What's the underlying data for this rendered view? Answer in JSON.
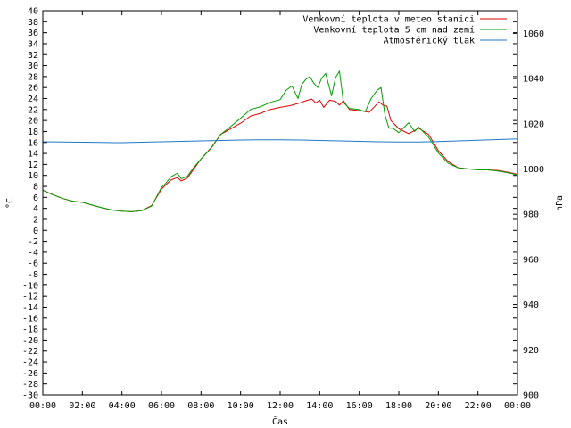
{
  "chart_data": {
    "type": "line",
    "xlabel": "Čas",
    "ylabel_left": "°C",
    "ylabel_right": "hPa",
    "x_ticks": [
      "00:00",
      "02:00",
      "04:00",
      "06:00",
      "08:00",
      "10:00",
      "12:00",
      "14:00",
      "16:00",
      "18:00",
      "20:00",
      "22:00",
      "00:00"
    ],
    "x_range_hours": [
      0,
      24
    ],
    "ylim_left": [
      -30,
      40
    ],
    "y_ticks_left": [
      40,
      38,
      36,
      34,
      32,
      30,
      28,
      26,
      24,
      22,
      20,
      18,
      16,
      14,
      12,
      10,
      8,
      6,
      4,
      2,
      0,
      -2,
      -4,
      -6,
      -8,
      -10,
      -12,
      -14,
      -16,
      -18,
      -20,
      -22,
      -24,
      -26,
      -28,
      -30
    ],
    "ylim_right": [
      900,
      1070
    ],
    "y_ticks_right": [
      1060,
      1040,
      1020,
      1000,
      980,
      960,
      940,
      920,
      900
    ],
    "grid": false,
    "legend_position": "top-right",
    "series": [
      {
        "name": "Venkovní teplota v meteo stanici",
        "axis": "left",
        "color": "#e00000",
        "x": [
          0,
          0.5,
          1,
          1.5,
          2,
          2.5,
          3,
          3.5,
          4,
          4.5,
          5,
          5.5,
          6,
          6.2,
          6.5,
          6.8,
          7,
          7.3,
          7.6,
          8,
          8.5,
          9,
          9.5,
          10,
          10.5,
          11,
          11.5,
          12,
          12.5,
          13,
          13.3,
          13.6,
          13.8,
          14,
          14.2,
          14.5,
          14.8,
          15,
          15.2,
          15.5,
          16,
          16.5,
          17,
          17.2,
          17.4,
          17.6,
          18,
          18.5,
          19,
          19.5,
          20,
          20.5,
          21,
          21.5,
          22,
          22.5,
          23,
          23.5,
          24
        ],
        "y": [
          7.3,
          6.5,
          5.8,
          5.3,
          5.1,
          4.6,
          4.1,
          3.7,
          3.5,
          3.4,
          3.6,
          4.5,
          7.5,
          8.2,
          9.2,
          9.6,
          9.0,
          9.5,
          11.0,
          13.0,
          15.0,
          17.5,
          18.5,
          19.5,
          20.8,
          21.3,
          22.0,
          22.4,
          22.7,
          23.2,
          23.6,
          23.9,
          23.2,
          23.7,
          22.4,
          23.7,
          23.5,
          22.8,
          23.6,
          22.0,
          21.8,
          21.5,
          23.4,
          22.8,
          22.6,
          20.0,
          18.5,
          17.6,
          18.6,
          17.5,
          14.5,
          12.5,
          11.4,
          11.2,
          11.1,
          11.0,
          10.9,
          10.6,
          10.2
        ]
      },
      {
        "name": "Venkovní teplota 5 cm nad zemí",
        "axis": "left",
        "color": "#00a000",
        "x": [
          0,
          0.5,
          1,
          1.5,
          2,
          2.5,
          3,
          3.5,
          4,
          4.5,
          5,
          5.5,
          6,
          6.2,
          6.5,
          6.8,
          7,
          7.3,
          7.6,
          8,
          8.5,
          9,
          9.5,
          10,
          10.5,
          11,
          11.5,
          12,
          12.3,
          12.6,
          12.9,
          13.1,
          13.3,
          13.5,
          13.7,
          13.9,
          14.1,
          14.3,
          14.6,
          14.8,
          15,
          15.2,
          15.5,
          16,
          16.3,
          16.6,
          16.9,
          17.1,
          17.3,
          17.5,
          17.7,
          18,
          18.5,
          18.8,
          19,
          19.5,
          20,
          20.5,
          21,
          21.5,
          22,
          22.5,
          23,
          23.5,
          24
        ],
        "y": [
          7.3,
          6.5,
          5.8,
          5.3,
          5.1,
          4.6,
          4.1,
          3.7,
          3.5,
          3.4,
          3.6,
          4.4,
          7.8,
          8.5,
          9.8,
          10.4,
          9.4,
          9.8,
          11.3,
          13.0,
          14.9,
          17.5,
          18.9,
          20.4,
          22.0,
          22.5,
          23.3,
          23.8,
          25.5,
          26.3,
          24.0,
          26.6,
          27.5,
          28.0,
          26.8,
          26.0,
          27.7,
          28.6,
          24.5,
          27.8,
          29.0,
          23.3,
          22.2,
          22.0,
          21.6,
          24.0,
          25.5,
          26.0,
          21.0,
          18.6,
          18.6,
          17.8,
          19.6,
          18.0,
          18.8,
          17.0,
          14.1,
          12.2,
          11.4,
          11.2,
          11.0,
          11.0,
          10.8,
          10.5,
          10.1
        ]
      },
      {
        "name": "Atmosférický tlak",
        "axis": "right",
        "color": "#1f78c8",
        "x": [
          0,
          1,
          2,
          3,
          4,
          5,
          6,
          7,
          8,
          9,
          10,
          11,
          12,
          13,
          14,
          15,
          16,
          17,
          18,
          19,
          20,
          21,
          22,
          23,
          24
        ],
        "y": [
          1012.0,
          1011.9,
          1011.8,
          1011.7,
          1011.6,
          1011.8,
          1012.0,
          1012.2,
          1012.4,
          1012.6,
          1012.8,
          1012.9,
          1012.9,
          1012.8,
          1012.6,
          1012.4,
          1012.2,
          1012.0,
          1011.9,
          1011.9,
          1012.1,
          1012.4,
          1012.7,
          1013.0,
          1013.3
        ]
      }
    ]
  }
}
